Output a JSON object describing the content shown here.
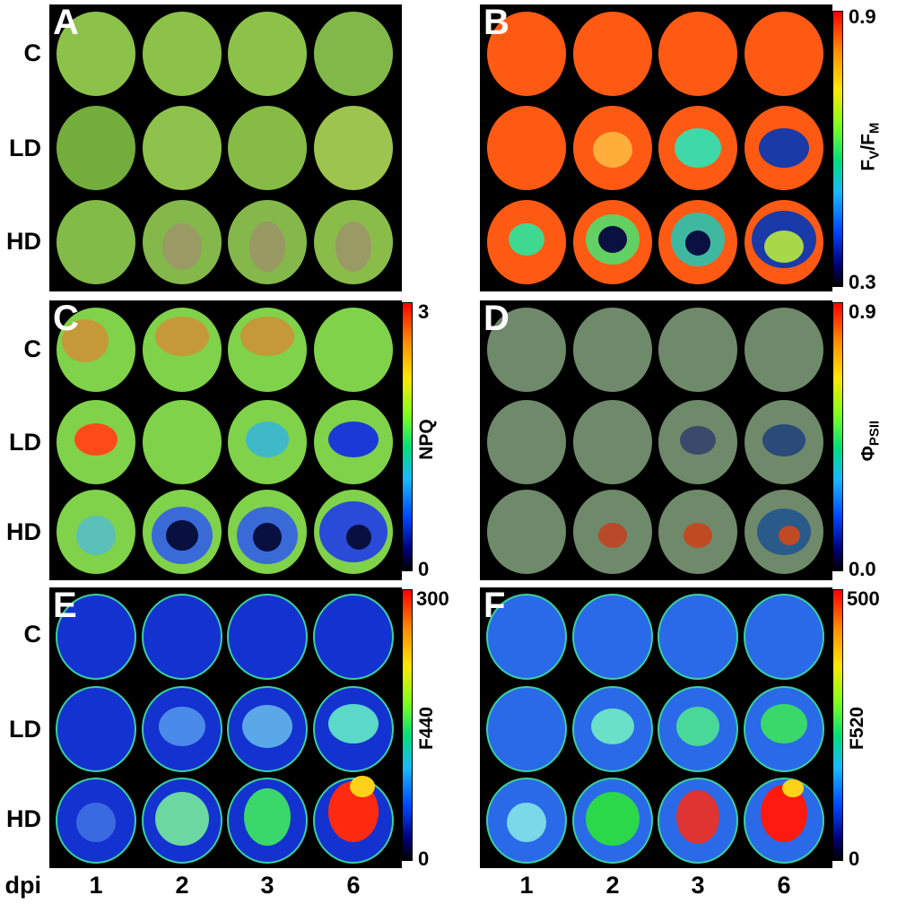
{
  "panels": {
    "A": {
      "label": "A"
    },
    "B": {
      "label": "B",
      "scale_label_main": "F",
      "scale_sub1": "V",
      "scale_sep": "/F",
      "scale_sub2": "M",
      "tick_top": "0.9",
      "tick_bottom": "0.3"
    },
    "C": {
      "label": "C",
      "scale_label": "NPQ",
      "tick_top": "3",
      "tick_bottom": "0"
    },
    "D": {
      "label": "D",
      "scale_label_main": "Φ",
      "scale_sub": "PSII",
      "tick_top": "0.9",
      "tick_bottom": "0.0"
    },
    "E": {
      "label": "E",
      "scale_label": "F440",
      "tick_top": "300",
      "tick_bottom": "0"
    },
    "F": {
      "label": "F",
      "scale_label": "F520",
      "tick_top": "500",
      "tick_bottom": "0"
    }
  },
  "row_labels": [
    "C",
    "LD",
    "HD"
  ],
  "col_axis_label": "dpi",
  "col_labels": [
    "1",
    "2",
    "3",
    "6"
  ],
  "colors": {
    "background": "#000000",
    "leaf_green": "#8cc24a",
    "fvfm_leaf": "#ff5a14",
    "npq_leaf": "#7fd24a",
    "phi_leaf": "#6f8a6a",
    "uv_leaf": "#1432d0"
  }
}
